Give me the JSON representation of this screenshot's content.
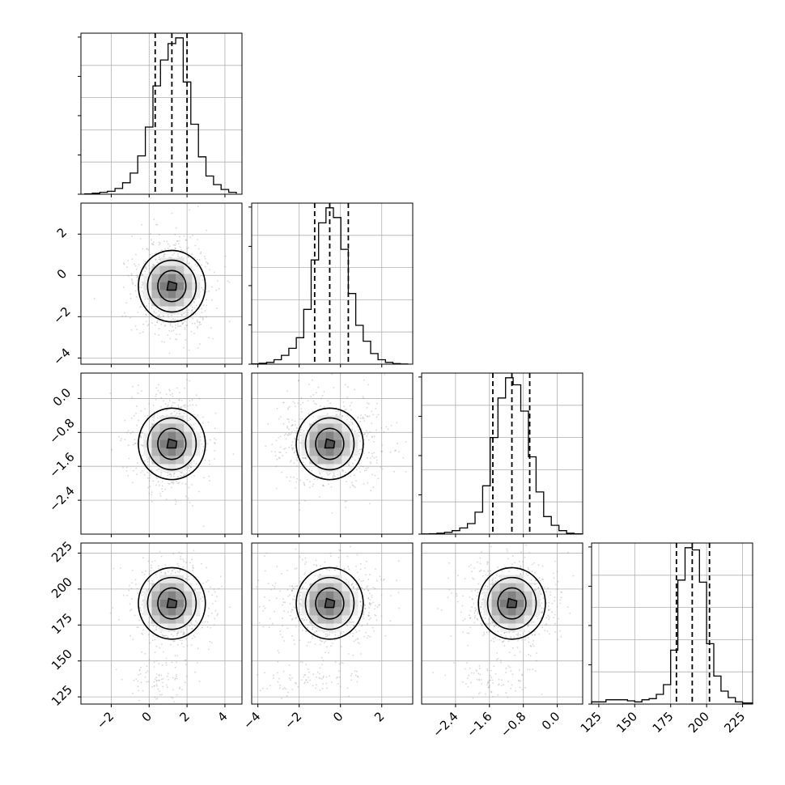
{
  "chart_data": {
    "type": "corner",
    "variables": [
      {
        "ticks": [
          "−2",
          "0",
          "2",
          "4"
        ],
        "range": [
          -3.6,
          4.9
        ],
        "tick_values": [
          -2,
          0,
          2,
          4
        ]
      },
      {
        "ticks": [
          "−4",
          "−2",
          "0",
          "2"
        ],
        "range": [
          -4.3,
          3.5
        ],
        "tick_values": [
          -4,
          -2,
          0,
          2
        ]
      },
      {
        "ticks": [
          "−2.4",
          "−1.6",
          "−0.8",
          "0.0"
        ],
        "range": [
          -3.2,
          0.6
        ],
        "tick_values": [
          -2.4,
          -1.6,
          -0.8,
          0.0
        ]
      },
      {
        "ticks": [
          "125",
          "150",
          "175",
          "200",
          "225"
        ],
        "range": [
          120,
          232
        ],
        "tick_values": [
          125,
          150,
          175,
          200,
          225
        ]
      }
    ],
    "quantiles": [
      [
        0.32,
        1.2,
        2.0
      ],
      [
        -1.25,
        -0.52,
        0.38
      ],
      [
        -1.52,
        -1.07,
        -0.65
      ],
      [
        179,
        190,
        202
      ]
    ],
    "histograms": [
      {
        "bins": [
          -3.4,
          -3.0,
          -2.6,
          -2.2,
          -1.8,
          -1.4,
          -1.0,
          -0.6,
          -0.2,
          0.2,
          0.6,
          1.0,
          1.4,
          1.8,
          2.2,
          2.6,
          3.0,
          3.4,
          3.8,
          4.2,
          4.6
        ],
        "counts": [
          0.4,
          1,
          2,
          3,
          6,
          12,
          22,
          40,
          70,
          113,
          140,
          157,
          163,
          117,
          73,
          39,
          19,
          10,
          5,
          2,
          0.6
        ]
      },
      {
        "bins": [
          -4.3,
          -3.94,
          -3.58,
          -3.22,
          -2.86,
          -2.5,
          -2.14,
          -1.78,
          -1.42,
          -1.06,
          -0.7,
          -0.34,
          0.02,
          0.38,
          0.74,
          1.1,
          1.46,
          1.82,
          2.18,
          2.54,
          2.9,
          3.26
        ],
        "counts": [
          0.3,
          1,
          2,
          5,
          10,
          18,
          30,
          62,
          118,
          160,
          177,
          166,
          130,
          80,
          44,
          26,
          12,
          5,
          2,
          0.6,
          0.2
        ]
      },
      {
        "bins": [
          -3.2,
          -3.02,
          -2.84,
          -2.66,
          -2.48,
          -2.3,
          -2.12,
          -1.94,
          -1.76,
          -1.58,
          -1.4,
          -1.22,
          -1.04,
          -0.86,
          -0.68,
          -0.5,
          -0.32,
          -0.14,
          0.04,
          0.22,
          0.4,
          0.6
        ],
        "counts": [
          0.2,
          0.5,
          1,
          2,
          4,
          7,
          12,
          25,
          55,
          110,
          155,
          178,
          170,
          140,
          88,
          48,
          20,
          10,
          4,
          1,
          0.4
        ]
      },
      {
        "bins": [
          120,
          125,
          130,
          135,
          140,
          145,
          150,
          155,
          160,
          165,
          170,
          175,
          180,
          185,
          190,
          195,
          200,
          205,
          210,
          215,
          220,
          225,
          232
        ],
        "counts": [
          2,
          2,
          4,
          4,
          4,
          3,
          2,
          4,
          5,
          9,
          18,
          50,
          115,
          145,
          143,
          113,
          56,
          26,
          12,
          6,
          2,
          1
        ]
      }
    ],
    "centers": [
      1.2,
      -0.52,
      -1.07,
      190
    ],
    "widths": [
      0.75,
      0.95,
      0.42,
      10.5
    ],
    "grid": true,
    "xlabels": [
      "",
      "",
      "",
      ""
    ],
    "ylabels": [
      "",
      "",
      "",
      ""
    ]
  }
}
